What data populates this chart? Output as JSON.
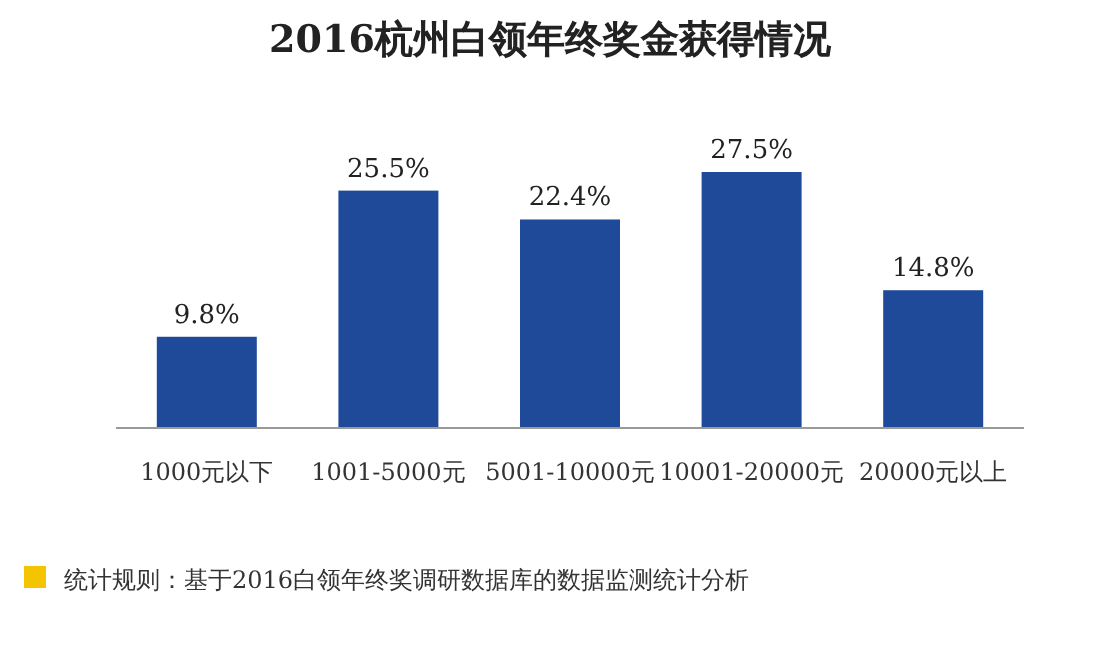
{
  "chart_data": {
    "type": "bar",
    "title": "2016杭州白领年终奖金获得情况",
    "categories": [
      "1000元以下",
      "1001-5000元",
      "5001-10000元",
      "10001-20000元",
      "20000元以上"
    ],
    "values": [
      9.8,
      25.5,
      22.4,
      27.5,
      14.8
    ],
    "value_labels": [
      "9.8%",
      "25.5%",
      "22.4%",
      "27.5%",
      "14.8%"
    ],
    "color": "#1f4a9a",
    "annotations": [
      "统计规则：基于2016白领年终奖调研数据库的数据监测统计分析"
    ]
  }
}
